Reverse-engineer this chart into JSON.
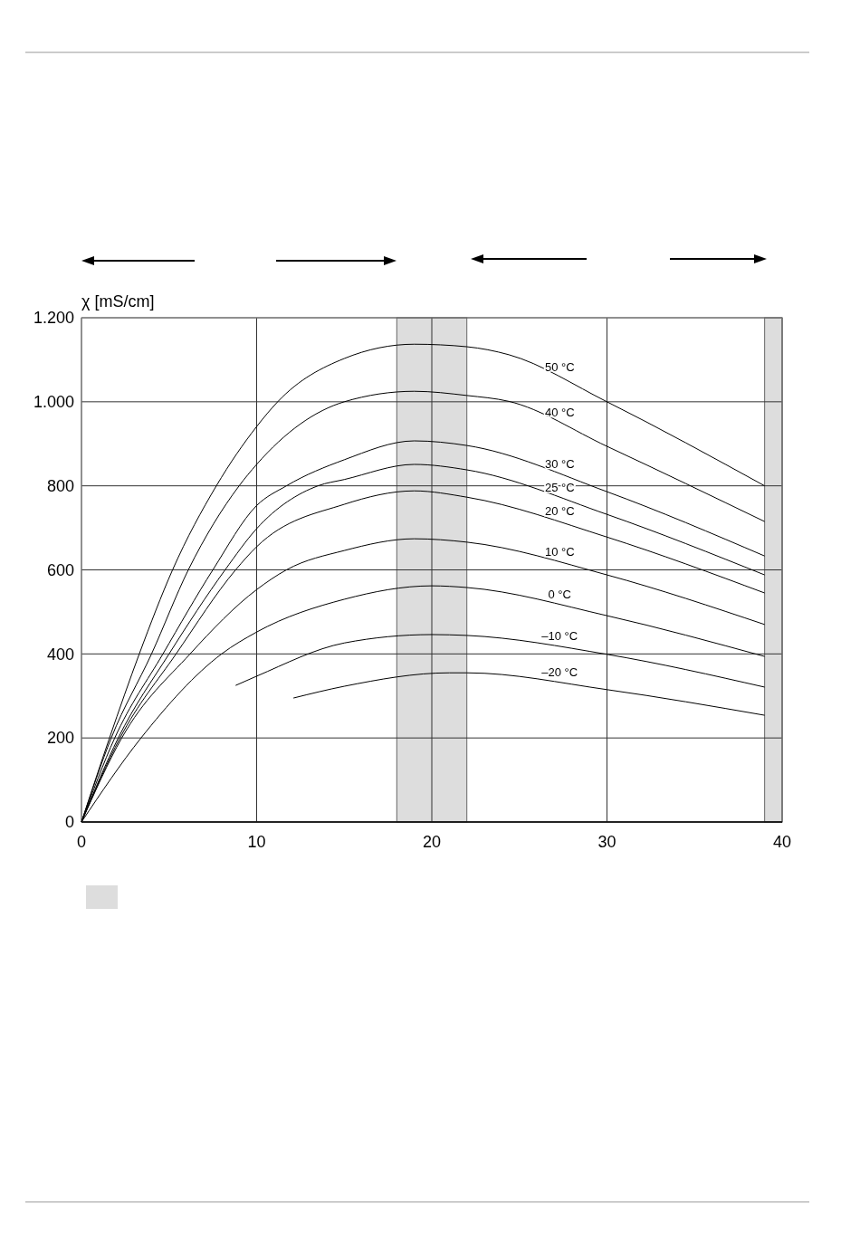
{
  "chart_data": {
    "type": "line",
    "ylabel": "χ  [mS/cm]",
    "xlim": [
      0,
      40
    ],
    "xticks": [
      0,
      10,
      20,
      30,
      40
    ],
    "ylim": [
      0,
      1200
    ],
    "yticks": [
      0,
      200,
      400,
      600,
      800,
      {
        "value": 1000,
        "label": "1.000"
      },
      {
        "value": 1200,
        "label": "1.200"
      }
    ],
    "grid": true,
    "bands": [
      {
        "axis": "x",
        "from": 18,
        "to": 22,
        "color": "#dddddd"
      },
      {
        "axis": "x",
        "from": 39,
        "to": 40,
        "color": "#dddddd"
      }
    ],
    "series": [
      {
        "name": "50 °C",
        "color": "#000000",
        "x": [
          0,
          1.6,
          3.3,
          5.2,
          7.7,
          10,
          11.2,
          15,
          19,
          22,
          24.4,
          30,
          39
        ],
        "values": [
          0,
          200,
          400,
          600,
          800,
          941,
          1000,
          1103,
          1137,
          1131,
          1112,
          1000,
          800
        ]
      },
      {
        "name": "40 °C",
        "color": "#000000",
        "x": [
          0,
          1.7,
          4,
          6.1,
          9,
          10,
          15,
          19,
          22,
          24.4,
          30,
          39
        ],
        "values": [
          0,
          200,
          400,
          600,
          800,
          851,
          1000,
          1025,
          1015,
          1001,
          894,
          715
        ]
      },
      {
        "name": "30 °C",
        "color": "#000000",
        "x": [
          0,
          1.9,
          4.65,
          7.5,
          10,
          11.7,
          15,
          19,
          22,
          30,
          39
        ],
        "values": [
          0,
          200,
          400,
          600,
          753,
          800,
          862,
          907,
          896,
          786,
          633
        ]
      },
      {
        "name": "25 °C",
        "color": "#000000",
        "x": [
          0,
          2.1,
          5,
          8.2,
          10,
          13.5,
          15,
          19,
          22,
          30,
          39
        ],
        "values": [
          0,
          200,
          400,
          600,
          698,
          800,
          815,
          851,
          838,
          732,
          588
        ]
      },
      {
        "name": "20 °C",
        "color": "#000000",
        "x": [
          0,
          2.2,
          5.4,
          8.8,
          10,
          15,
          19,
          22,
          30,
          39
        ],
        "values": [
          0,
          200,
          400,
          600,
          655,
          756,
          788,
          773,
          678,
          545
        ]
      },
      {
        "name": "10 °C",
        "color": "#000000",
        "x": [
          0,
          2.3,
          6.2,
          10,
          11.7,
          15,
          19,
          22,
          30,
          39
        ],
        "values": [
          0,
          200,
          400,
          553,
          600,
          646,
          674,
          666,
          588,
          470
        ]
      },
      {
        "name": "0 °C",
        "color": "#000000",
        "x": [
          0,
          3.4,
          8,
          10,
          15,
          20,
          22,
          30,
          39
        ],
        "values": [
          0,
          200,
          400,
          452,
          530,
          562,
          558,
          491,
          394
        ]
      },
      {
        "name": "–10 °C",
        "color": "#000000",
        "x": [
          8.8,
          10,
          15,
          20,
          22,
          30,
          39
        ],
        "values": [
          325,
          347,
          426,
          446,
          444,
          399,
          321
        ]
      },
      {
        "name": "–20 °C",
        "color": "#000000",
        "x": [
          12.1,
          15,
          21,
          22,
          30,
          39
        ],
        "values": [
          295,
          323,
          355,
          355,
          315,
          254
        ]
      }
    ]
  }
}
